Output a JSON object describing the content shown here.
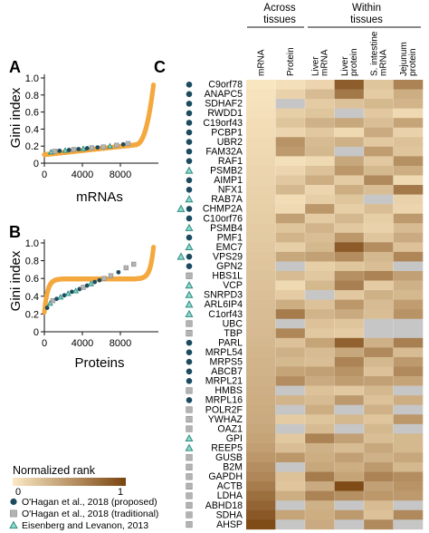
{
  "panels": {
    "A": {
      "letter": "A"
    },
    "B": {
      "letter": "B"
    },
    "C": {
      "letter": "C"
    }
  },
  "colors": {
    "curve": "#f4a93f",
    "proposed": "#1b4b5e",
    "traditional": "#b3b3b3",
    "eisenberg_fill": "#8fd8cf",
    "eisenberg_stroke": "#2d8c7c",
    "missing": "#c6c6c6",
    "rank_low": "#fbe9c4",
    "rank_high": "#7a4410"
  },
  "chart_data": [
    {
      "panel": "A",
      "type": "scatter",
      "xlabel": "mRNAs",
      "ylabel": "Gini index",
      "xlim": [
        0,
        12000
      ],
      "ylim": [
        0,
        1.0
      ],
      "xticks": [
        "0",
        "4000",
        "8000"
      ],
      "xtick_values": [
        0,
        4000,
        8000
      ],
      "yticks": [
        "0",
        "0.2",
        "0.4",
        "0.6",
        "0.8",
        "1.0"
      ],
      "ytick_values": [
        0,
        0.2,
        0.4,
        0.6,
        0.8,
        1.0
      ],
      "curve": {
        "n": 11500,
        "base": 0.1,
        "slope": 1.2e-05,
        "center": 0.17,
        "tail_start": 9500,
        "tail_end": 11500,
        "tail_top": 0.91,
        "tail_power": 2.6
      },
      "markers": [
        {
          "x": 700,
          "y": 0.13,
          "group": "eisenberg"
        },
        {
          "x": 1100,
          "y": 0.14,
          "group": "traditional"
        },
        {
          "x": 1600,
          "y": 0.145,
          "group": "proposed"
        },
        {
          "x": 2200,
          "y": 0.15,
          "group": "eisenberg"
        },
        {
          "x": 2600,
          "y": 0.155,
          "group": "proposed"
        },
        {
          "x": 3100,
          "y": 0.16,
          "group": "traditional"
        },
        {
          "x": 3600,
          "y": 0.165,
          "group": "proposed"
        },
        {
          "x": 4100,
          "y": 0.17,
          "group": "eisenberg"
        },
        {
          "x": 4500,
          "y": 0.175,
          "group": "proposed"
        },
        {
          "x": 5000,
          "y": 0.18,
          "group": "traditional"
        },
        {
          "x": 5600,
          "y": 0.185,
          "group": "proposed"
        },
        {
          "x": 6200,
          "y": 0.19,
          "group": "traditional"
        },
        {
          "x": 6900,
          "y": 0.2,
          "group": "eisenberg"
        },
        {
          "x": 7600,
          "y": 0.21,
          "group": "traditional"
        },
        {
          "x": 8300,
          "y": 0.22,
          "group": "proposed"
        },
        {
          "x": 8800,
          "y": 0.23,
          "group": "traditional"
        }
      ]
    },
    {
      "panel": "B",
      "type": "scatter",
      "xlabel": "Proteins",
      "ylabel": "Gini index",
      "xlim": [
        0,
        12000
      ],
      "ylim": [
        0,
        1.0
      ],
      "xticks": [
        "0",
        "4000",
        "8000"
      ],
      "xtick_values": [
        0,
        4000,
        8000
      ],
      "yticks": [
        "0",
        "0.2",
        "0.4",
        "0.6",
        "0.8",
        "1.0"
      ],
      "ytick_values": [
        0,
        0.2,
        0.4,
        0.6,
        0.8,
        1.0
      ],
      "curve": {
        "n": 11500,
        "low": 0.22,
        "high": 0.97,
        "k": 0.00072,
        "center": 5750
      },
      "markers": [
        {
          "x": 300,
          "y": 0.27,
          "group": "proposed"
        },
        {
          "x": 600,
          "y": 0.32,
          "group": "eisenberg"
        },
        {
          "x": 900,
          "y": 0.35,
          "group": "traditional"
        },
        {
          "x": 1300,
          "y": 0.37,
          "group": "proposed"
        },
        {
          "x": 1700,
          "y": 0.39,
          "group": "eisenberg"
        },
        {
          "x": 2100,
          "y": 0.41,
          "group": "proposed"
        },
        {
          "x": 2500,
          "y": 0.43,
          "group": "eisenberg"
        },
        {
          "x": 2900,
          "y": 0.45,
          "group": "proposed"
        },
        {
          "x": 3300,
          "y": 0.46,
          "group": "eisenberg"
        },
        {
          "x": 3700,
          "y": 0.48,
          "group": "proposed"
        },
        {
          "x": 4100,
          "y": 0.5,
          "group": "traditional"
        },
        {
          "x": 4500,
          "y": 0.52,
          "group": "proposed"
        },
        {
          "x": 4900,
          "y": 0.54,
          "group": "eisenberg"
        },
        {
          "x": 5300,
          "y": 0.56,
          "group": "proposed"
        },
        {
          "x": 5800,
          "y": 0.58,
          "group": "proposed"
        },
        {
          "x": 6300,
          "y": 0.6,
          "group": "traditional"
        },
        {
          "x": 7000,
          "y": 0.63,
          "group": "traditional"
        },
        {
          "x": 7800,
          "y": 0.67,
          "group": "proposed"
        },
        {
          "x": 8600,
          "y": 0.72,
          "group": "traditional"
        },
        {
          "x": 9400,
          "y": 0.76,
          "group": "traditional"
        }
      ]
    },
    {
      "panel": "C",
      "type": "heatmap",
      "group_headers": [
        {
          "text": "Across",
          "text2": "tissues",
          "cols": [
            0,
            1
          ]
        },
        {
          "text": "Within",
          "text2": "tissues",
          "cols": [
            2,
            5
          ]
        }
      ],
      "columns": [
        {
          "lines": [
            "mRNA"
          ]
        },
        {
          "lines": [
            "Protein"
          ]
        },
        {
          "lines": [
            "Liver",
            "mRNA"
          ]
        },
        {
          "lines": [
            "Liver",
            "protein"
          ]
        },
        {
          "lines": [
            "S. intestine",
            "mRNA"
          ]
        },
        {
          "lines": [
            "Jejunum",
            "protein"
          ]
        }
      ],
      "value_range": [
        0,
        1
      ],
      "genes": [
        {
          "name": "C9orf78",
          "markers": [
            "proposed"
          ],
          "values": [
            0.02,
            0.06,
            0.12,
            0.85,
            0.22,
            0.62
          ]
        },
        {
          "name": "ANAPC5",
          "markers": [
            "proposed"
          ],
          "values": [
            0.04,
            0.14,
            0.28,
            0.68,
            0.18,
            0.36
          ]
        },
        {
          "name": "SDHAF2",
          "markers": [
            "proposed"
          ],
          "values": [
            0.05,
            null,
            0.18,
            0.24,
            0.3,
            0.32
          ]
        },
        {
          "name": "RWDD1",
          "markers": [
            "proposed"
          ],
          "values": [
            0.06,
            0.16,
            0.22,
            null,
            0.2,
            0.1
          ]
        },
        {
          "name": "C19orf43",
          "markers": [
            "proposed"
          ],
          "values": [
            0.07,
            0.22,
            0.34,
            0.4,
            0.26,
            0.42
          ]
        },
        {
          "name": "PCBP1",
          "markers": [
            "proposed"
          ],
          "values": [
            0.08,
            0.12,
            0.2,
            0.1,
            0.38,
            0.14
          ]
        },
        {
          "name": "UBR2",
          "markers": [
            "proposed"
          ],
          "values": [
            0.09,
            0.52,
            0.28,
            0.34,
            0.2,
            0.24
          ]
        },
        {
          "name": "FAM32A",
          "markers": [
            "proposed"
          ],
          "values": [
            0.1,
            0.48,
            0.3,
            null,
            0.46,
            0.22
          ]
        },
        {
          "name": "RAF1",
          "markers": [
            "proposed"
          ],
          "values": [
            0.11,
            0.06,
            0.1,
            0.4,
            0.2,
            0.54
          ]
        },
        {
          "name": "PSMB2",
          "markers": [
            "eisenberg"
          ],
          "values": [
            0.12,
            0.12,
            0.24,
            0.5,
            0.3,
            0.36
          ]
        },
        {
          "name": "AIMP1",
          "markers": [
            "proposed"
          ],
          "values": [
            0.13,
            0.2,
            0.36,
            0.18,
            0.58,
            0.1
          ]
        },
        {
          "name": "NFX1",
          "markers": [
            "proposed"
          ],
          "values": [
            0.14,
            0.3,
            0.12,
            0.36,
            0.26,
            0.68
          ]
        },
        {
          "name": "RAB7A",
          "markers": [
            "eisenberg"
          ],
          "values": [
            0.15,
            0.08,
            0.16,
            0.22,
            null,
            0.14
          ]
        },
        {
          "name": "CHMP2A",
          "markers": [
            "eisenberg",
            "proposed"
          ],
          "values": [
            0.16,
            0.1,
            0.5,
            0.16,
            0.26,
            0.12
          ]
        },
        {
          "name": "C10orf76",
          "markers": [
            "proposed"
          ],
          "values": [
            0.17,
            0.44,
            0.18,
            0.3,
            0.16,
            0.48
          ]
        },
        {
          "name": "PSMB4",
          "markers": [
            "eisenberg"
          ],
          "values": [
            0.18,
            0.22,
            0.32,
            0.2,
            0.14,
            0.28
          ]
        },
        {
          "name": "PMF1",
          "markers": [
            "proposed"
          ],
          "values": [
            0.19,
            0.32,
            0.26,
            0.5,
            0.22,
            0.38
          ]
        },
        {
          "name": "EMC7",
          "markers": [
            "eisenberg"
          ],
          "values": [
            0.2,
            0.16,
            0.3,
            0.86,
            0.56,
            0.24
          ]
        },
        {
          "name": "VPS29",
          "markers": [
            "eisenberg",
            "proposed"
          ],
          "values": [
            0.21,
            0.4,
            0.44,
            0.56,
            0.3,
            0.6
          ]
        },
        {
          "name": "GPN2",
          "markers": [
            "proposed"
          ],
          "values": [
            0.22,
            null,
            0.16,
            0.22,
            0.26,
            null
          ]
        },
        {
          "name": "HBS1L",
          "markers": [
            "traditional"
          ],
          "values": [
            0.23,
            0.28,
            0.2,
            0.54,
            0.62,
            0.44
          ]
        },
        {
          "name": "VCP",
          "markers": [
            "eisenberg"
          ],
          "values": [
            0.24,
            0.1,
            0.3,
            0.64,
            0.18,
            0.34
          ]
        },
        {
          "name": "SNRPD3",
          "markers": [
            "eisenberg"
          ],
          "values": [
            0.25,
            0.18,
            null,
            0.2,
            0.34,
            0.3
          ]
        },
        {
          "name": "ARL6IP4",
          "markers": [
            "eisenberg"
          ],
          "values": [
            0.26,
            0.36,
            0.24,
            0.5,
            0.28,
            0.46
          ]
        },
        {
          "name": "C1orf43",
          "markers": [
            "eisenberg"
          ],
          "values": [
            0.27,
            0.66,
            0.32,
            0.38,
            0.26,
            0.52
          ]
        },
        {
          "name": "UBC",
          "markers": [
            "traditional"
          ],
          "values": [
            0.28,
            null,
            0.24,
            0.22,
            null,
            null
          ]
        },
        {
          "name": "TBP",
          "markers": [
            "traditional"
          ],
          "values": [
            0.29,
            0.6,
            0.2,
            0.18,
            null,
            null
          ]
        },
        {
          "name": "PARL",
          "markers": [
            "proposed"
          ],
          "values": [
            0.3,
            0.24,
            0.42,
            0.82,
            0.34,
            0.64
          ]
        },
        {
          "name": "MRPL54",
          "markers": [
            "proposed"
          ],
          "values": [
            0.31,
            0.34,
            0.28,
            0.4,
            0.58,
            0.28
          ]
        },
        {
          "name": "MRPS5",
          "markers": [
            "proposed"
          ],
          "values": [
            0.32,
            0.3,
            0.26,
            0.62,
            0.3,
            0.48
          ]
        },
        {
          "name": "ABCB7",
          "markers": [
            "proposed"
          ],
          "values": [
            0.33,
            0.42,
            0.44,
            0.52,
            0.24,
            0.58
          ]
        },
        {
          "name": "MRPL21",
          "markers": [
            "proposed"
          ],
          "values": [
            0.34,
            0.56,
            0.38,
            0.46,
            0.44,
            0.42
          ]
        },
        {
          "name": "HMBS",
          "markers": [
            "traditional"
          ],
          "values": [
            0.35,
            null,
            0.24,
            0.2,
            0.3,
            null
          ]
        },
        {
          "name": "MRPL16",
          "markers": [
            "proposed"
          ],
          "values": [
            0.36,
            0.32,
            0.28,
            0.48,
            0.24,
            0.36
          ]
        },
        {
          "name": "POLR2F",
          "markers": [
            "traditional"
          ],
          "values": [
            0.37,
            null,
            0.36,
            null,
            0.34,
            null
          ]
        },
        {
          "name": "YWHAZ",
          "markers": [
            "traditional"
          ],
          "values": [
            0.38,
            0.18,
            0.22,
            0.3,
            0.22,
            0.5
          ]
        },
        {
          "name": "OAZ1",
          "markers": [
            "traditional"
          ],
          "values": [
            0.4,
            null,
            0.28,
            null,
            0.3,
            null
          ]
        },
        {
          "name": "GPI",
          "markers": [
            "eisenberg"
          ],
          "values": [
            0.42,
            0.2,
            0.62,
            0.44,
            0.26,
            0.3
          ]
        },
        {
          "name": "REEP5",
          "markers": [
            "eisenberg"
          ],
          "values": [
            0.45,
            0.26,
            0.34,
            0.28,
            0.4,
            0.3
          ]
        },
        {
          "name": "GUSB",
          "markers": [
            "traditional"
          ],
          "values": [
            0.5,
            0.5,
            0.36,
            0.44,
            0.34,
            0.4
          ]
        },
        {
          "name": "B2M",
          "markers": [
            "traditional"
          ],
          "values": [
            0.55,
            null,
            0.4,
            0.36,
            0.48,
            0.3
          ]
        },
        {
          "name": "GAPDH",
          "markers": [
            "traditional"
          ],
          "values": [
            0.6,
            0.24,
            0.66,
            0.42,
            0.62,
            0.56
          ]
        },
        {
          "name": "ACTB",
          "markers": [
            "traditional"
          ],
          "values": [
            0.66,
            0.22,
            0.38,
            0.96,
            0.44,
            0.52
          ]
        },
        {
          "name": "LDHA",
          "markers": [
            "traditional"
          ],
          "values": [
            0.74,
            0.36,
            0.62,
            0.54,
            0.5,
            0.48
          ]
        },
        {
          "name": "ABHD18",
          "markers": [
            "traditional"
          ],
          "values": [
            0.8,
            null,
            0.34,
            null,
            0.28,
            null
          ]
        },
        {
          "name": "SDHA",
          "markers": [
            "traditional"
          ],
          "values": [
            0.88,
            0.42,
            0.36,
            0.48,
            0.24,
            0.58
          ]
        },
        {
          "name": "AHSP",
          "markers": [
            "traditional"
          ],
          "values": [
            0.96,
            null,
            0.38,
            null,
            0.58,
            null
          ]
        }
      ]
    }
  ],
  "colorbar": {
    "title": "Normalized rank",
    "min_label": "0",
    "max_label": "1"
  },
  "legend": [
    {
      "key": "proposed",
      "label": "O'Hagan et al., 2018 (proposed)"
    },
    {
      "key": "traditional",
      "label": "O'Hagan et al., 2018 (traditional)"
    },
    {
      "key": "eisenberg",
      "label": "Eisenberg and Levanon, 2013"
    }
  ]
}
